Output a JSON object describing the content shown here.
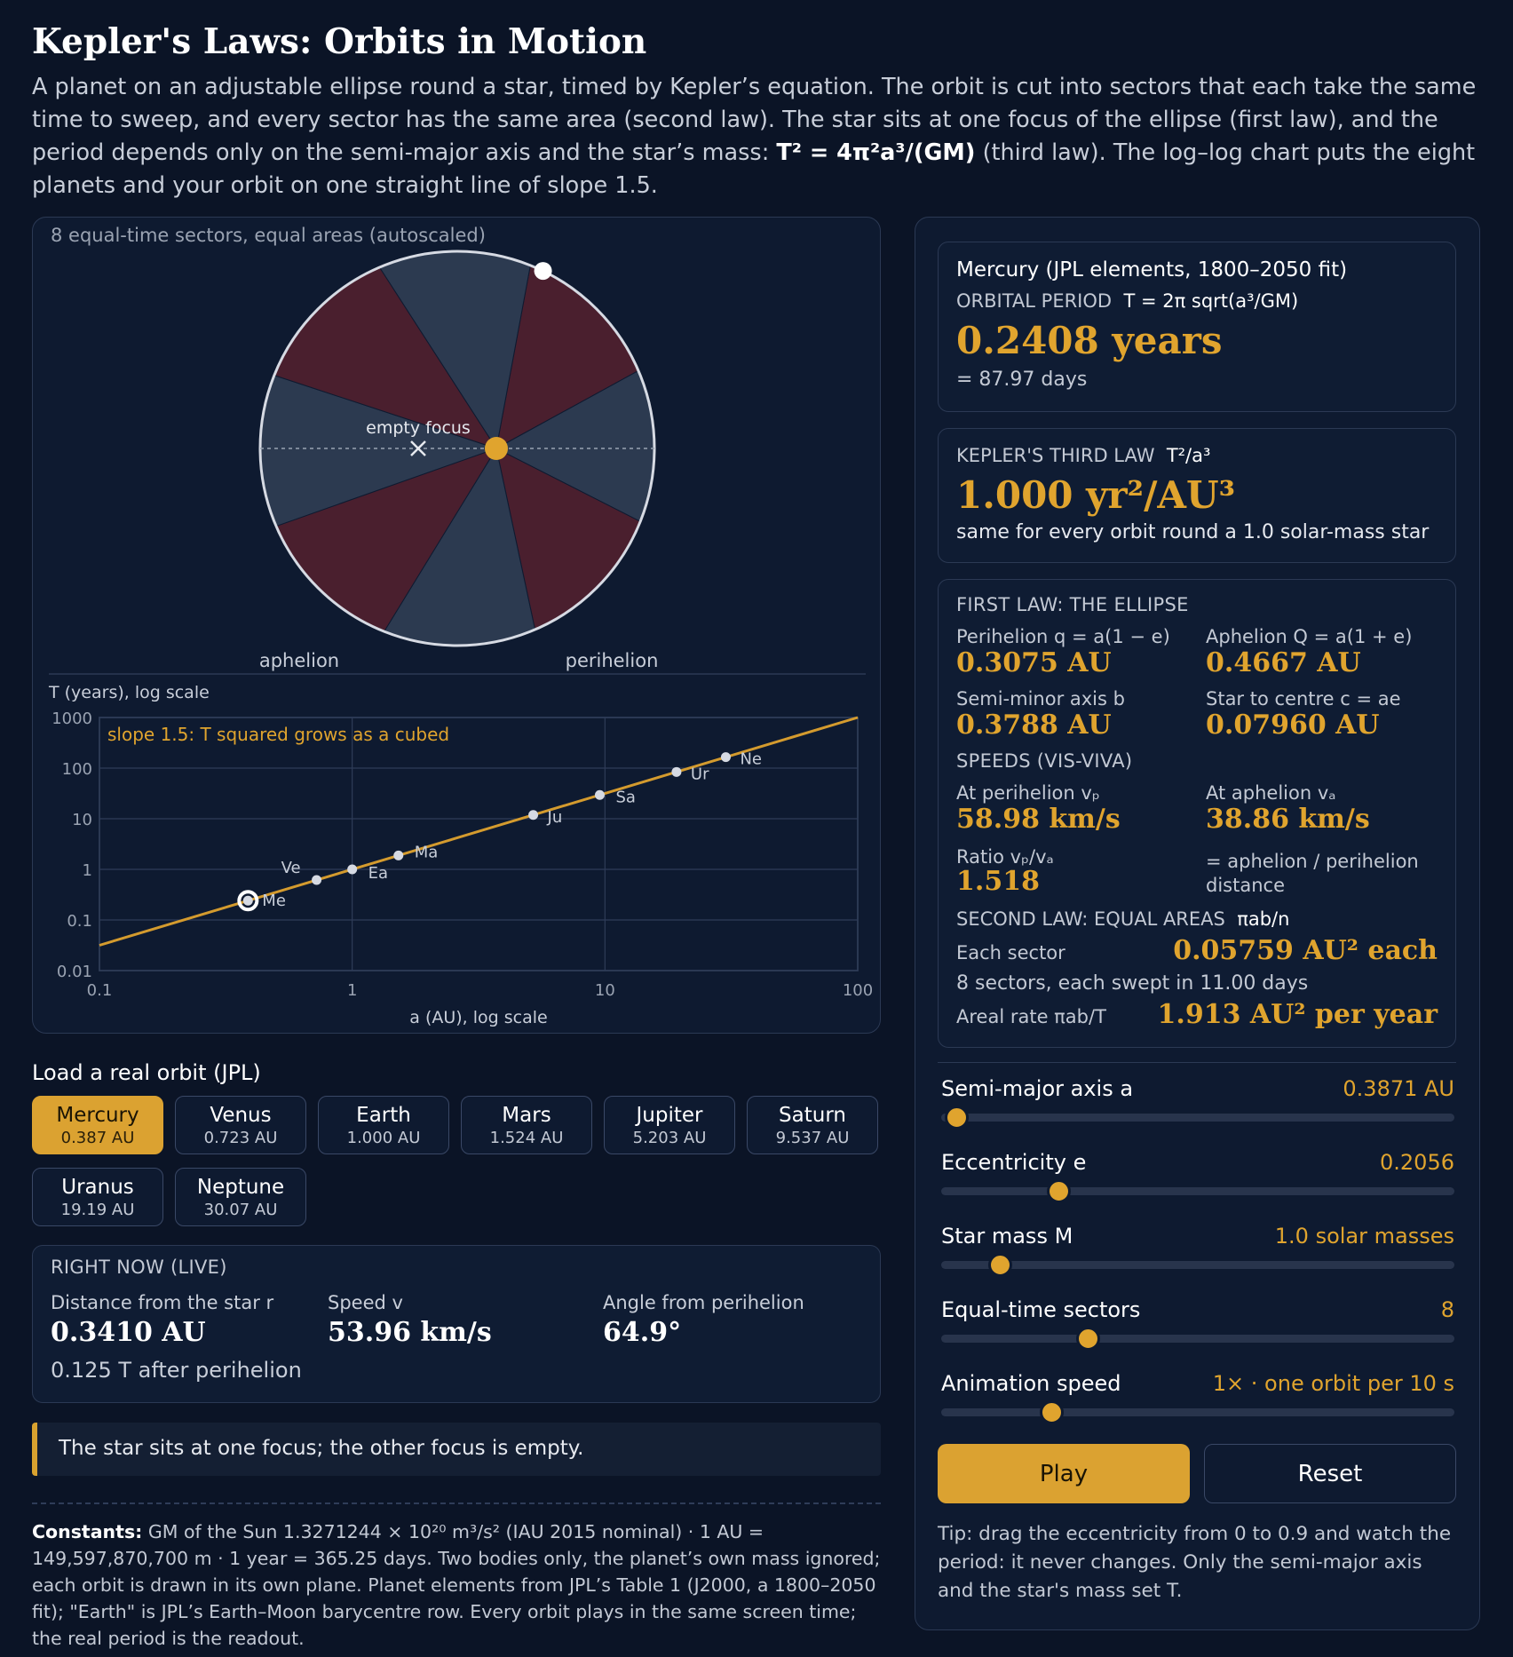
{
  "page": {
    "title": "Kepler's Laws: Orbits in Motion",
    "intro_1": "A planet on an adjustable ellipse round a star, timed by Kepler’s equation. The orbit is cut into sectors that each take the same time to sweep, and every sector has the same area (second law). The star sits at one focus of the ellipse (first law), and the period depends only on the semi-major axis and the star’s mass: ",
    "intro_formula": "T² = 4π²a³/(GM)",
    "intro_2": " (third law). The log–log chart puts the eight planets and your orbit on one straight line of slope 1.5."
  },
  "orbit": {
    "caption": "8 equal-time sectors, equal areas (autoscaled)",
    "empty_focus_label": "empty focus",
    "aphelion_label": "aphelion",
    "perihelion_label": "perihelion",
    "sector_count": 8,
    "colors": {
      "sector_a": "#4a1f2e",
      "sector_b": "#2c3a50",
      "star": "#e0a42e",
      "outline": "#d6dae3"
    }
  },
  "chart_data": {
    "type": "scatter",
    "title": "",
    "ylabel": "T (years), log scale",
    "xlabel": "a (AU), log scale",
    "x_scale": "log",
    "y_scale": "log",
    "xlim": [
      0.1,
      100
    ],
    "ylim": [
      0.01,
      1000
    ],
    "x_ticks": [
      "0.1",
      "1",
      "10",
      "100"
    ],
    "y_ticks": [
      "1000",
      "100",
      "10",
      "1",
      "0.1",
      "0.01"
    ],
    "annotation": "slope 1.5: T squared grows as a cubed",
    "grid": true,
    "points": [
      {
        "label": "Me",
        "a": 0.387,
        "T": 0.2408
      },
      {
        "label": "Ve",
        "a": 0.723,
        "T": 0.615
      },
      {
        "label": "Ea",
        "a": 1.0,
        "T": 1.0
      },
      {
        "label": "Ma",
        "a": 1.524,
        "T": 1.881
      },
      {
        "label": "Ju",
        "a": 5.203,
        "T": 11.86
      },
      {
        "label": "Sa",
        "a": 9.537,
        "T": 29.46
      },
      {
        "label": "Ur",
        "a": 19.19,
        "T": 84.01
      },
      {
        "label": "Ne",
        "a": 30.07,
        "T": 164.8
      }
    ],
    "current": {
      "label": "Me",
      "a": 0.3871,
      "T": 0.2408
    },
    "line": {
      "slope": 1.5,
      "color": "#d49b2e"
    }
  },
  "loader": {
    "title": "Load a real orbit (JPL)",
    "planets": [
      {
        "name": "Mercury",
        "a": "0.387 AU",
        "active": true
      },
      {
        "name": "Venus",
        "a": "0.723 AU"
      },
      {
        "name": "Earth",
        "a": "1.000 AU"
      },
      {
        "name": "Mars",
        "a": "1.524 AU"
      },
      {
        "name": "Jupiter",
        "a": "5.203 AU"
      },
      {
        "name": "Saturn",
        "a": "9.537 AU"
      },
      {
        "name": "Uranus",
        "a": "19.19 AU"
      },
      {
        "name": "Neptune",
        "a": "30.07 AU"
      }
    ]
  },
  "live": {
    "title": "RIGHT NOW (LIVE)",
    "r_label": "Distance from the star r",
    "r_value": "0.3410 AU",
    "v_label": "Speed v",
    "v_value": "53.96 km/s",
    "angle_label": "Angle from perihelion",
    "angle_value": "64.9°",
    "time_note": "0.125 T after perihelion"
  },
  "note": "The star sits at one focus; the other focus is empty.",
  "constants": {
    "label": "Constants:",
    "text": "GM of the Sun 1.3271244 × 10²⁰ m³/s² (IAU 2015 nominal) · 1 AU = 149,597,870,700 m · 1 year = 365.25 days. Two bodies only, the planet’s own mass ignored; each orbit is drawn in its own plane. Planet elements from JPL’s Table 1 (J2000, a 1800–2050 fit); \"Earth\" is JPL’s Earth–Moon barycentre row. Every orbit plays in the same screen time; the real period is the readout."
  },
  "period": {
    "source": "Mercury (JPL elements, 1800–2050 fit)",
    "label": "ORBITAL PERIOD",
    "formula": "T = 2π sqrt(a³/GM)",
    "value": "0.2408 years",
    "days": "= 87.97 days"
  },
  "third_law": {
    "label": "KEPLER'S THIRD LAW",
    "formula": "T²/a³",
    "value": "1.000 yr²/AU³",
    "note": "same for every orbit round a 1.0 solar-mass star"
  },
  "first_law": {
    "title": "FIRST LAW: THE ELLIPSE",
    "perihelion_label": "Perihelion q = a(1 − e)",
    "perihelion_value": "0.3075 AU",
    "aphelion_label": "Aphelion Q = a(1 + e)",
    "aphelion_value": "0.4667 AU",
    "minor_label": "Semi-minor axis b",
    "minor_value": "0.3788 AU",
    "c_label": "Star to centre c = ae",
    "c_value": "0.07960 AU",
    "speeds_title": "SPEEDS (VIS-VIVA)",
    "vp_label": "At perihelion vₚ",
    "vp_value": "58.98 km/s",
    "va_label": "At aphelion vₐ",
    "va_value": "38.86 km/s",
    "ratio_label": "Ratio vₚ/vₐ",
    "ratio_value": "1.518",
    "ratio_note": "= aphelion / perihelion distance",
    "second_title": "SECOND LAW: EQUAL AREAS",
    "second_formula": "πab/n",
    "sector_label": "Each sector",
    "sector_value": "0.05759 AU² each",
    "sector_note": "8 sectors, each swept in 11.00 days",
    "areal_label": "Areal rate  πab/T",
    "areal_value": "1.913 AU² per year"
  },
  "sliders": [
    {
      "id": "semi-major",
      "label": "Semi-major axis a",
      "value": "0.3871 AU",
      "fraction": 0.03
    },
    {
      "id": "eccentricity",
      "label": "Eccentricity e",
      "value": "0.2056",
      "fraction": 0.228
    },
    {
      "id": "star-mass",
      "label": "Star mass M",
      "value": "1.0 solar masses",
      "fraction": 0.115
    },
    {
      "id": "sectors",
      "label": "Equal-time sectors",
      "value": "8",
      "fraction": 0.285
    },
    {
      "id": "speed",
      "label": "Animation speed",
      "value": "1× · one orbit per 10 s",
      "fraction": 0.215
    }
  ],
  "controls": {
    "play": "Play",
    "reset": "Reset"
  },
  "tip": "Tip: drag the eccentricity from 0 to 0.9 and watch the period: it never changes. Only the semi-major axis and the star's mass set T."
}
